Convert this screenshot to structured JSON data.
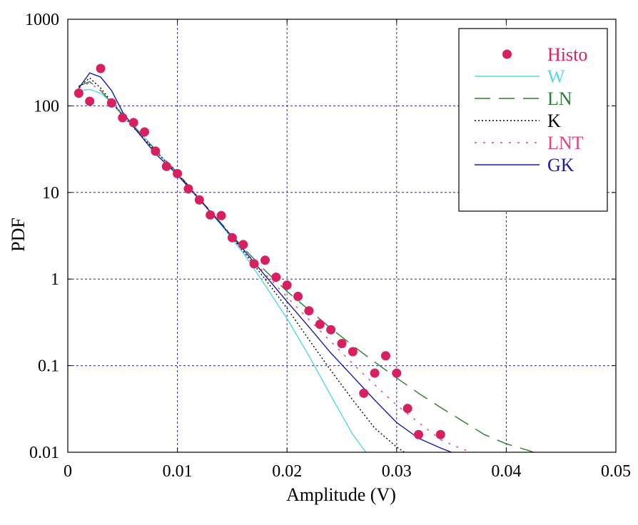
{
  "chart_data": {
    "type": "scatter",
    "title": "",
    "xlabel": "Amplitude (V)",
    "ylabel": "PDF",
    "xlim": [
      0,
      0.05
    ],
    "ylim": [
      0.01,
      1000
    ],
    "yscale": "log",
    "grid": true,
    "legend_position": "top-right",
    "xticks": [
      {
        "value": 0,
        "label": "0"
      },
      {
        "value": 0.01,
        "label": "0.01"
      },
      {
        "value": 0.02,
        "label": "0.02"
      },
      {
        "value": 0.03,
        "label": "0.03"
      },
      {
        "value": 0.04,
        "label": "0.04"
      },
      {
        "value": 0.05,
        "label": "0.05"
      }
    ],
    "yticks": [
      {
        "value": 0.01,
        "label": "0.01"
      },
      {
        "value": 0.1,
        "label": "0.1"
      },
      {
        "value": 1,
        "label": "1"
      },
      {
        "value": 10,
        "label": "10"
      },
      {
        "value": 100,
        "label": "100"
      },
      {
        "value": 1000,
        "label": "1000"
      }
    ],
    "series": [
      {
        "name": "Histo",
        "kind": "markers",
        "color": "#d81f5f",
        "x": [
          0.001,
          0.002,
          0.003,
          0.004,
          0.005,
          0.006,
          0.007,
          0.008,
          0.009,
          0.01,
          0.011,
          0.012,
          0.013,
          0.014,
          0.015,
          0.016,
          0.017,
          0.018,
          0.019,
          0.02,
          0.021,
          0.022,
          0.023,
          0.024,
          0.025,
          0.026,
          0.027,
          0.028,
          0.029,
          0.03,
          0.031,
          0.032,
          0.034
        ],
        "y": [
          140,
          113,
          270,
          108,
          73,
          64,
          50,
          30,
          20,
          16.5,
          11,
          8.2,
          5.5,
          5.4,
          3.0,
          2.5,
          1.5,
          1.65,
          1.05,
          0.85,
          0.63,
          0.43,
          0.3,
          0.26,
          0.18,
          0.145,
          0.048,
          0.082,
          0.13,
          0.082,
          0.032,
          0.016,
          0.016
        ]
      },
      {
        "name": "W",
        "kind": "line",
        "dash": "solid",
        "color": "#55d8e0",
        "x": [
          0.001,
          0.002,
          0.003,
          0.004,
          0.005,
          0.006,
          0.008,
          0.01,
          0.012,
          0.014,
          0.016,
          0.018,
          0.02,
          0.022,
          0.024,
          0.026,
          0.0272
        ],
        "y": [
          150,
          155,
          140,
          110,
          82,
          60,
          31,
          16,
          8.5,
          4.2,
          2.0,
          0.85,
          0.35,
          0.13,
          0.045,
          0.016,
          0.01
        ]
      },
      {
        "name": "LN",
        "kind": "line",
        "dash": "long",
        "color": "#2e7d32",
        "x": [
          0.001,
          0.002,
          0.003,
          0.004,
          0.005,
          0.006,
          0.008,
          0.01,
          0.012,
          0.014,
          0.016,
          0.018,
          0.02,
          0.022,
          0.024,
          0.026,
          0.028,
          0.03,
          0.032,
          0.034,
          0.036,
          0.038,
          0.04,
          0.042,
          0.0425
        ],
        "y": [
          170,
          190,
          150,
          108,
          78,
          58,
          31,
          17,
          8.5,
          4.4,
          2.3,
          1.25,
          0.72,
          0.44,
          0.27,
          0.17,
          0.11,
          0.072,
          0.048,
          0.033,
          0.023,
          0.016,
          0.0125,
          0.0105,
          0.01
        ]
      },
      {
        "name": "K",
        "kind": "line",
        "dash": "dotted",
        "color": "#000000",
        "x": [
          0.001,
          0.002,
          0.003,
          0.004,
          0.005,
          0.006,
          0.008,
          0.01,
          0.012,
          0.014,
          0.016,
          0.018,
          0.02,
          0.022,
          0.024,
          0.026,
          0.028,
          0.03,
          0.0307
        ],
        "y": [
          165,
          210,
          160,
          112,
          78,
          56,
          30,
          16.5,
          8.5,
          4.3,
          2.1,
          1.0,
          0.46,
          0.2,
          0.088,
          0.04,
          0.019,
          0.0115,
          0.01
        ]
      },
      {
        "name": "LNT",
        "kind": "line",
        "dash": "dotted-wide",
        "color": "#e0457d",
        "x": [
          0.001,
          0.002,
          0.003,
          0.004,
          0.005,
          0.006,
          0.008,
          0.01,
          0.012,
          0.014,
          0.016,
          0.018,
          0.02,
          0.022,
          0.024,
          0.026,
          0.028,
          0.03,
          0.032,
          0.034,
          0.036,
          0.037
        ],
        "y": [
          160,
          185,
          150,
          108,
          78,
          58,
          31,
          16.5,
          8.5,
          4.4,
          2.2,
          1.15,
          0.62,
          0.34,
          0.19,
          0.105,
          0.06,
          0.035,
          0.022,
          0.014,
          0.0108,
          0.01
        ]
      },
      {
        "name": "GK",
        "kind": "line",
        "dash": "solid",
        "color": "#1a1aa6",
        "x": [
          0.001,
          0.002,
          0.003,
          0.004,
          0.005,
          0.006,
          0.008,
          0.01,
          0.012,
          0.014,
          0.016,
          0.018,
          0.02,
          0.022,
          0.024,
          0.026,
          0.028,
          0.03,
          0.032,
          0.034,
          0.035
        ],
        "y": [
          160,
          240,
          215,
          150,
          85,
          57,
          28,
          16,
          8.3,
          4.3,
          2.2,
          1.1,
          0.55,
          0.28,
          0.14,
          0.075,
          0.04,
          0.022,
          0.0145,
          0.0112,
          0.01
        ]
      }
    ]
  }
}
